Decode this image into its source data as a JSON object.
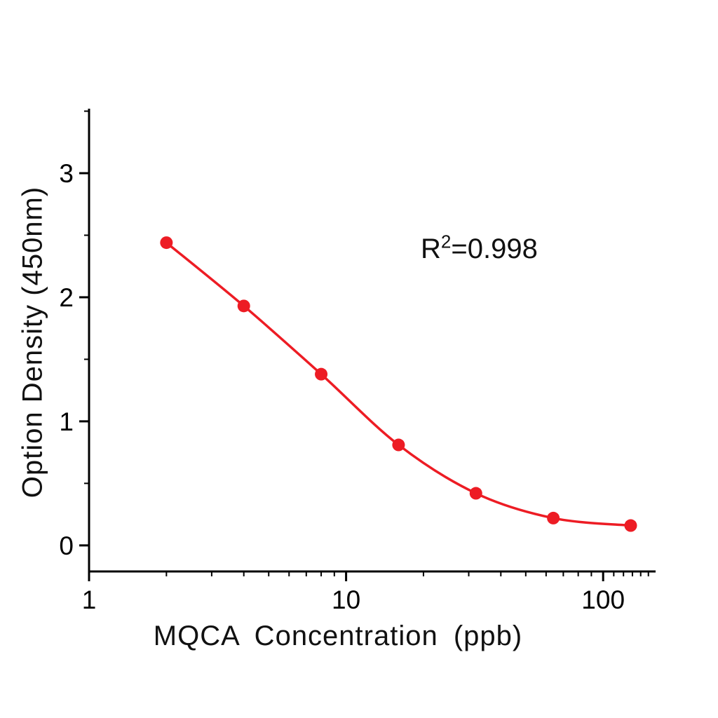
{
  "chart_data": {
    "type": "scatter",
    "title": "",
    "xlabel": "MQCA Concentration (ppb)",
    "ylabel": "Option Density (450nm)",
    "x_scale": "log",
    "xlim": [
      1,
      160
    ],
    "ylim": [
      -0.21,
      3.52
    ],
    "x": [
      2,
      4,
      8,
      16,
      32,
      64,
      128
    ],
    "y": [
      2.44,
      1.93,
      1.38,
      0.81,
      0.42,
      0.22,
      0.16
    ],
    "x_ticks": [
      {
        "value": 1,
        "label": "1"
      },
      {
        "value": 10,
        "label": "10"
      },
      {
        "value": 100,
        "label": "100"
      }
    ],
    "y_ticks": [
      {
        "value": 0,
        "label": "0"
      },
      {
        "value": 1,
        "label": "1"
      },
      {
        "value": 2,
        "label": "2"
      },
      {
        "value": 3,
        "label": "3"
      }
    ],
    "x_minor_ticks": [
      2,
      3,
      4,
      5,
      6,
      7,
      8,
      9,
      20,
      30,
      40,
      50,
      60,
      70,
      80,
      90,
      110,
      120,
      130,
      140,
      150
    ],
    "y_minor_ticks": [
      0.5,
      1.5,
      2.5,
      3.5
    ],
    "series_color": "#ed1c24",
    "axis_color": "#000000",
    "annotation": {
      "base": "R",
      "sup": "2",
      "rest": "=0.998"
    },
    "grid": false,
    "legend": "none"
  }
}
